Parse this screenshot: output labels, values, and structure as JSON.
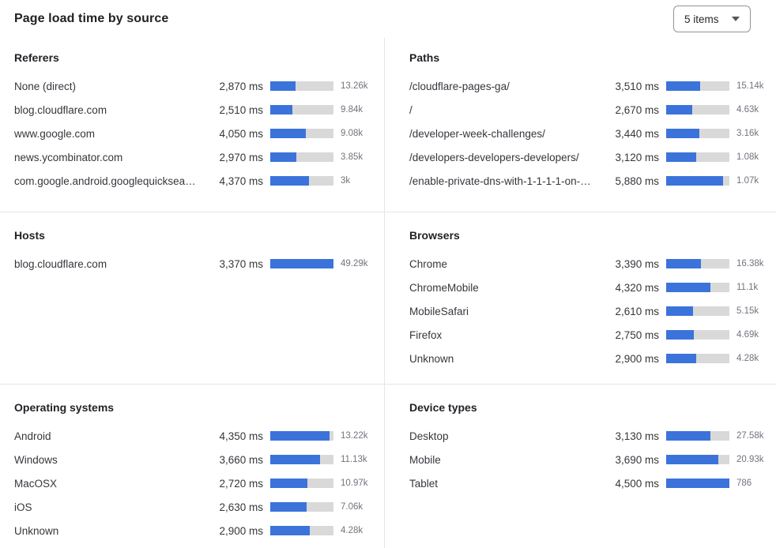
{
  "header": {
    "title": "Page load time by source",
    "items_selector": {
      "value": "5 items"
    }
  },
  "colors": {
    "accent_blue": "#3b73db",
    "bar_track": "#d9d9d9",
    "divider": "#e6e6e7",
    "text_primary": "#34373c",
    "text_secondary": "#70747c"
  },
  "chart_data": [
    {
      "type": "bar",
      "title": "Referers",
      "unit": "ms",
      "rows": [
        {
          "label": "None (direct)",
          "ms": 2870,
          "ms_display": "2,870 ms",
          "count": 13260,
          "count_display": "13.26k",
          "bar_pct": 40
        },
        {
          "label": "blog.cloudflare.com",
          "ms": 2510,
          "ms_display": "2,510 ms",
          "count": 9840,
          "count_display": "9.84k",
          "bar_pct": 35
        },
        {
          "label": "www.google.com",
          "ms": 4050,
          "ms_display": "4,050 ms",
          "count": 9080,
          "count_display": "9.08k",
          "bar_pct": 56
        },
        {
          "label": "news.ycombinator.com",
          "ms": 2970,
          "ms_display": "2,970 ms",
          "count": 3850,
          "count_display": "3.85k",
          "bar_pct": 41
        },
        {
          "label": "com.google.android.googlequicksearc…",
          "ms": 4370,
          "ms_display": "4,370 ms",
          "count": 3000,
          "count_display": "3k",
          "bar_pct": 61
        }
      ]
    },
    {
      "type": "bar",
      "title": "Paths",
      "unit": "ms",
      "rows": [
        {
          "label": "/cloudflare-pages-ga/",
          "ms": 3510,
          "ms_display": "3,510 ms",
          "count": 15140,
          "count_display": "15.14k",
          "bar_pct": 54
        },
        {
          "label": "/",
          "ms": 2670,
          "ms_display": "2,670 ms",
          "count": 4630,
          "count_display": "4.63k",
          "bar_pct": 41
        },
        {
          "label": "/developer-week-challenges/",
          "ms": 3440,
          "ms_display": "3,440 ms",
          "count": 3160,
          "count_display": "3.16k",
          "bar_pct": 53
        },
        {
          "label": "/developers-developers-developers/",
          "ms": 3120,
          "ms_display": "3,120 ms",
          "count": 1080,
          "count_display": "1.08k",
          "bar_pct": 48
        },
        {
          "label": "/enable-private-dns-with-1-1-1-1-on-…",
          "ms": 5880,
          "ms_display": "5,880 ms",
          "count": 1070,
          "count_display": "1.07k",
          "bar_pct": 90
        }
      ]
    },
    {
      "type": "bar",
      "title": "Hosts",
      "unit": "ms",
      "rows": [
        {
          "label": "blog.cloudflare.com",
          "ms": 3370,
          "ms_display": "3,370 ms",
          "count": 49290,
          "count_display": "49.29k",
          "bar_pct": 100
        }
      ]
    },
    {
      "type": "bar",
      "title": "Browsers",
      "unit": "ms",
      "rows": [
        {
          "label": "Chrome",
          "ms": 3390,
          "ms_display": "3,390 ms",
          "count": 16380,
          "count_display": "16.38k",
          "bar_pct": 55
        },
        {
          "label": "ChromeMobile",
          "ms": 4320,
          "ms_display": "4,320 ms",
          "count": 11100,
          "count_display": "11.1k",
          "bar_pct": 70
        },
        {
          "label": "MobileSafari",
          "ms": 2610,
          "ms_display": "2,610 ms",
          "count": 5150,
          "count_display": "5.15k",
          "bar_pct": 42
        },
        {
          "label": "Firefox",
          "ms": 2750,
          "ms_display": "2,750 ms",
          "count": 4690,
          "count_display": "4.69k",
          "bar_pct": 44
        },
        {
          "label": "Unknown",
          "ms": 2900,
          "ms_display": "2,900 ms",
          "count": 4280,
          "count_display": "4.28k",
          "bar_pct": 47
        }
      ]
    },
    {
      "type": "bar",
      "title": "Operating systems",
      "unit": "ms",
      "rows": [
        {
          "label": "Android",
          "ms": 4350,
          "ms_display": "4,350 ms",
          "count": 13220,
          "count_display": "13.22k",
          "bar_pct": 94
        },
        {
          "label": "Windows",
          "ms": 3660,
          "ms_display": "3,660 ms",
          "count": 11130,
          "count_display": "11.13k",
          "bar_pct": 79
        },
        {
          "label": "MacOSX",
          "ms": 2720,
          "ms_display": "2,720 ms",
          "count": 10970,
          "count_display": "10.97k",
          "bar_pct": 59
        },
        {
          "label": "iOS",
          "ms": 2630,
          "ms_display": "2,630 ms",
          "count": 7060,
          "count_display": "7.06k",
          "bar_pct": 57
        },
        {
          "label": "Unknown",
          "ms": 2900,
          "ms_display": "2,900 ms",
          "count": 4280,
          "count_display": "4.28k",
          "bar_pct": 62
        }
      ]
    },
    {
      "type": "bar",
      "title": "Device types",
      "unit": "ms",
      "rows": [
        {
          "label": "Desktop",
          "ms": 3130,
          "ms_display": "3,130 ms",
          "count": 27580,
          "count_display": "27.58k",
          "bar_pct": 70
        },
        {
          "label": "Mobile",
          "ms": 3690,
          "ms_display": "3,690 ms",
          "count": 20930,
          "count_display": "20.93k",
          "bar_pct": 82
        },
        {
          "label": "Tablet",
          "ms": 4500,
          "ms_display": "4,500 ms",
          "count": 786,
          "count_display": "786",
          "bar_pct": 100
        }
      ]
    }
  ]
}
